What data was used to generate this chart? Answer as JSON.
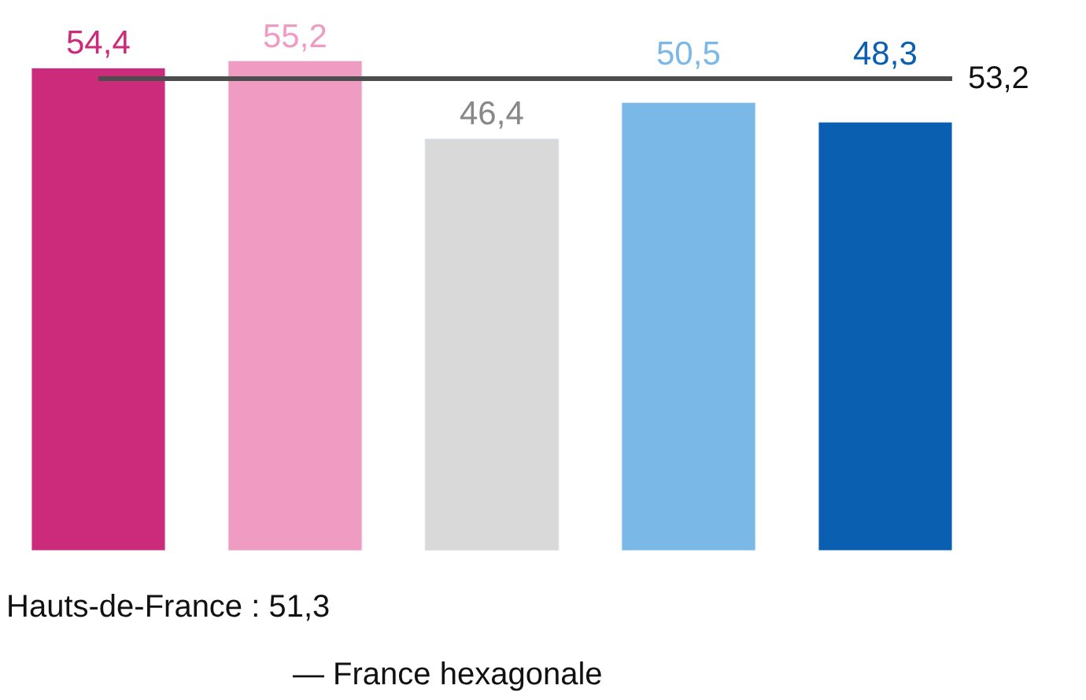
{
  "chart_data": {
    "type": "bar",
    "categories": [
      null,
      null,
      null,
      null,
      null
    ],
    "values": [
      54.4,
      55.2,
      46.4,
      50.5,
      48.3
    ],
    "colors": [
      "#cc2a7a",
      "#f09cc2",
      "#d9d9d9",
      "#7ab8e8",
      "#0a5fb0"
    ],
    "value_labels": [
      "54,4",
      "55,2",
      "46,4",
      "50,5",
      "48,3"
    ],
    "ref_lines": [
      {
        "axis": "y",
        "value": 53.2,
        "label": "53,2",
        "color": "#4d4d4d"
      }
    ],
    "annotations": [
      "Hauts-de-France : 51,3",
      "— France hexagonale"
    ]
  }
}
